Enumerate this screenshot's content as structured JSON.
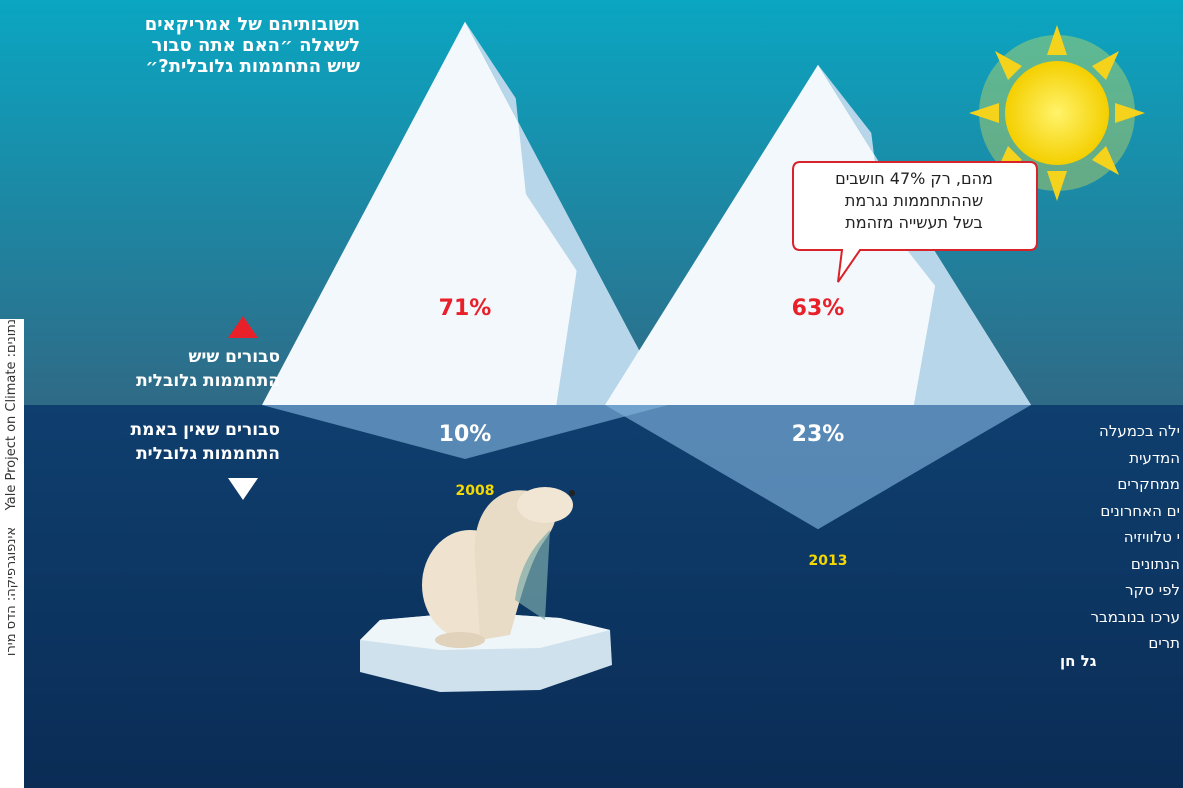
{
  "chart_data": {
    "type": "iceberg",
    "title": "תשובותיהם של אמריקאים\nלשאלה ״האם אתה סבור\nשיש התחממות גלובלית?״",
    "categories": [
      "2008",
      "2013"
    ],
    "series": [
      {
        "name": "סבורים שיש\nהתחממות גלובלית",
        "color": "#e8202a",
        "values": [
          71,
          63
        ],
        "value_labels": [
          "71%",
          "63%"
        ]
      },
      {
        "name": "סבורים שאין באמת\nהתחממות גלובלית",
        "color": "#ffffff",
        "values": [
          10,
          23
        ],
        "value_labels": [
          "10%",
          "23%"
        ]
      }
    ],
    "annotation": "מהם, רק 47% חושבים\nשההתחממות נגרמת\nבשל תעשייה מזהמת",
    "side_text": [
      "ילה בכמעלה",
      "המדעית",
      "ממחקרים",
      "ים האחרונים",
      "י טלוויזיה",
      "הנתונים",
      "לפי סקר",
      "ערכו בנובמבר",
      "תרים"
    ],
    "author": "גל חן",
    "credits": [
      "נתונים: Yale Project on Climate",
      "אינפוגרפיקה: הדס מירו"
    ]
  }
}
